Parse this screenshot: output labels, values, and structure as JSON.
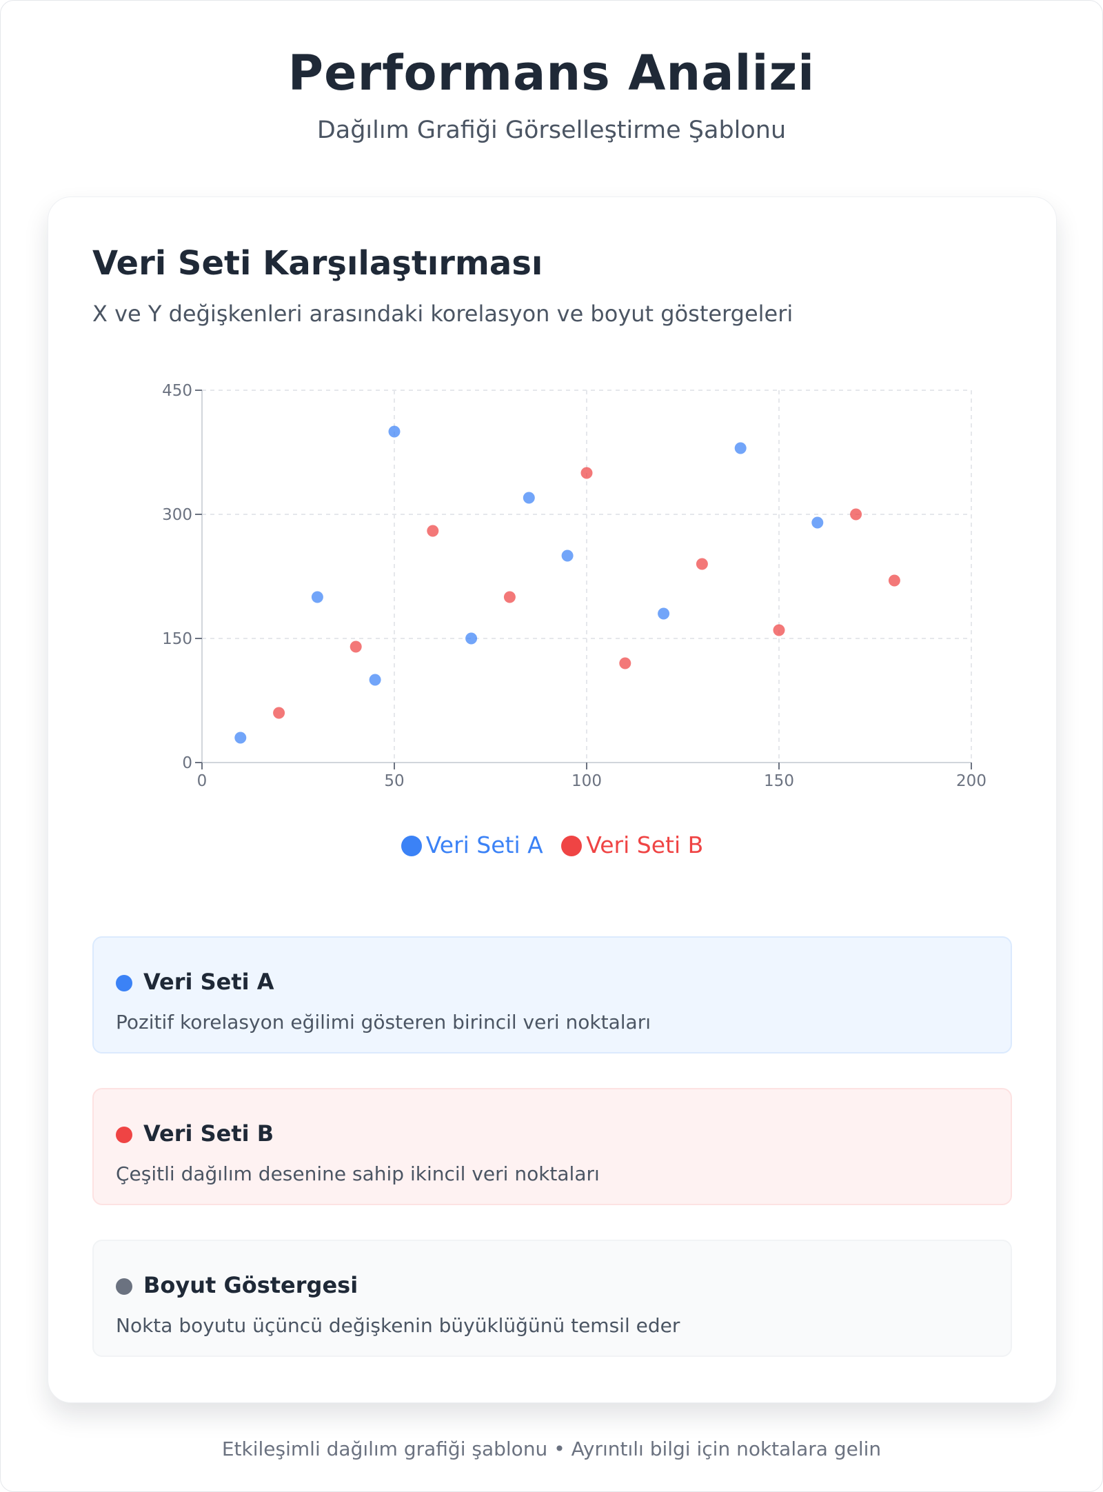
{
  "header": {
    "title": "Performans Analizi",
    "subtitle": "Dağılım Grafiği Görselleştirme Şablonu"
  },
  "card": {
    "title": "Veri Seti Karşılaştırması",
    "subtitle": "X ve Y değişkenleri arasındaki korelasyon ve boyut göstergeleri"
  },
  "chart_data": {
    "type": "scatter",
    "title": "",
    "xlabel": "",
    "ylabel": "",
    "xlim": [
      0,
      200
    ],
    "ylim": [
      0,
      450
    ],
    "x_ticks": [
      0,
      50,
      100,
      150,
      200
    ],
    "y_ticks": [
      0,
      150,
      300,
      450
    ],
    "x_tick_labels": [
      "0",
      "50",
      "100",
      "150",
      "200"
    ],
    "y_tick_labels": [
      "0",
      "150",
      "300",
      "450"
    ],
    "grid": true,
    "legend_position": "bottom-center",
    "series": [
      {
        "name": "Veri Seti A",
        "color": "#3b82f6",
        "points": [
          {
            "x": 10,
            "y": 30
          },
          {
            "x": 30,
            "y": 200
          },
          {
            "x": 45,
            "y": 100
          },
          {
            "x": 50,
            "y": 400
          },
          {
            "x": 70,
            "y": 150
          },
          {
            "x": 85,
            "y": 320
          },
          {
            "x": 95,
            "y": 250
          },
          {
            "x": 120,
            "y": 180
          },
          {
            "x": 140,
            "y": 380
          },
          {
            "x": 160,
            "y": 290
          }
        ]
      },
      {
        "name": "Veri Seti B",
        "color": "#ef4444",
        "points": [
          {
            "x": 20,
            "y": 60
          },
          {
            "x": 40,
            "y": 140
          },
          {
            "x": 60,
            "y": 280
          },
          {
            "x": 80,
            "y": 200
          },
          {
            "x": 100,
            "y": 350
          },
          {
            "x": 110,
            "y": 120
          },
          {
            "x": 130,
            "y": 240
          },
          {
            "x": 150,
            "y": 160
          },
          {
            "x": 170,
            "y": 300
          },
          {
            "x": 180,
            "y": 220
          }
        ]
      }
    ]
  },
  "legend": {
    "items": [
      {
        "label": "Veri Seti A",
        "color": "#3b82f6"
      },
      {
        "label": "Veri Seti B",
        "color": "#ef4444"
      }
    ]
  },
  "info": {
    "a": {
      "title": "Veri Seti A",
      "description": "Pozitif korelasyon eğilimi gösteren birincil veri noktaları",
      "color": "#3b82f6"
    },
    "b": {
      "title": "Veri Seti B",
      "description": "Çeşitli dağılım desenine sahip ikincil veri noktaları",
      "color": "#ef4444"
    },
    "size": {
      "title": "Boyut Göstergesi",
      "description": "Nokta boyutu üçüncü değişkenin büyüklüğünü temsil eder",
      "color": "#6b7280"
    }
  },
  "footer": {
    "text": "Etkileşimli dağılım grafiği şablonu • Ayrıntılı bilgi için noktalara gelin"
  }
}
